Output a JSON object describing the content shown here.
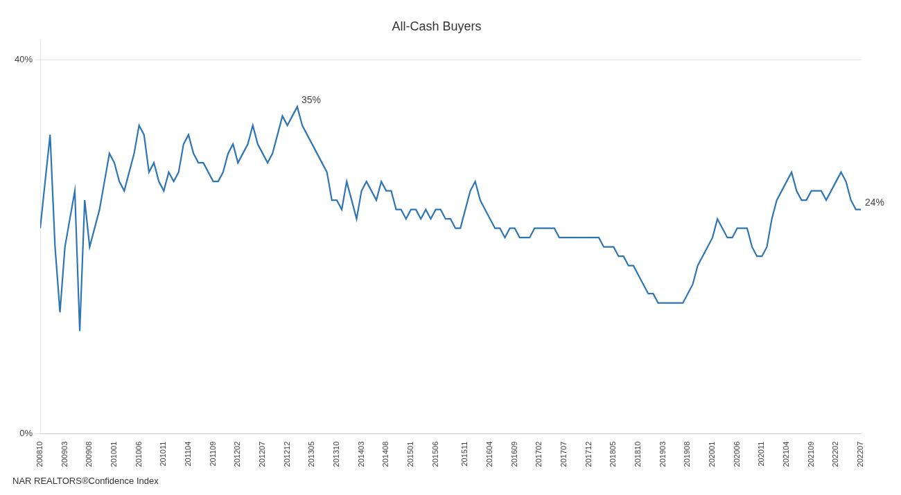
{
  "chart_data": {
    "type": "line",
    "title": "All-Cash Buyers",
    "footer": "NAR REALTORS®Confidence Index",
    "color": "#2e75b6",
    "categories": [
      "200810",
      null,
      null,
      null,
      null,
      "200903",
      null,
      null,
      null,
      null,
      "200908",
      null,
      null,
      null,
      null,
      "201001",
      null,
      null,
      null,
      null,
      "201006",
      null,
      null,
      null,
      null,
      "201011",
      null,
      null,
      null,
      null,
      "201104",
      null,
      null,
      null,
      null,
      "201109",
      null,
      null,
      null,
      null,
      "201202",
      null,
      null,
      null,
      null,
      "201207",
      null,
      null,
      null,
      null,
      "201212",
      null,
      null,
      null,
      null,
      "201305",
      null,
      null,
      null,
      null,
      "201310",
      null,
      null,
      null,
      null,
      "201403",
      null,
      null,
      null,
      null,
      "201408",
      null,
      null,
      null,
      null,
      "201501",
      null,
      null,
      null,
      null,
      "201506",
      null,
      null,
      null,
      null,
      null,
      "201511",
      null,
      null,
      null,
      null,
      "201604",
      null,
      null,
      null,
      null,
      "201609",
      null,
      null,
      null,
      null,
      "201702",
      null,
      null,
      null,
      null,
      "201707",
      null,
      null,
      null,
      null,
      "201712",
      null,
      null,
      null,
      null,
      "201805",
      null,
      null,
      null,
      null,
      "201810",
      null,
      null,
      null,
      null,
      "201903",
      null,
      null,
      null,
      null,
      "201908",
      null,
      null,
      null,
      null,
      "202001",
      null,
      null,
      null,
      null,
      "202006",
      null,
      null,
      null,
      null,
      "202011",
      null,
      null,
      null,
      null,
      "202104",
      null,
      null,
      null,
      null,
      "202109",
      null,
      null,
      null,
      null,
      "202202",
      null,
      null,
      null,
      null,
      "202207"
    ],
    "values": [
      22,
      27,
      32,
      20,
      13,
      20,
      23,
      26,
      11,
      25,
      20,
      22,
      24,
      27,
      30,
      29,
      27,
      26,
      28,
      30,
      33,
      32,
      28,
      29,
      27,
      26,
      28,
      27,
      28,
      31,
      32,
      30,
      29,
      29,
      28,
      27,
      27,
      28,
      30,
      31,
      29,
      30,
      31,
      33,
      31,
      30,
      29,
      30,
      32,
      34,
      33,
      34,
      35,
      33,
      32,
      31,
      30,
      29,
      28,
      25,
      25,
      24,
      27,
      25,
      23,
      26,
      27,
      26,
      25,
      27,
      26,
      26,
      24,
      24,
      23,
      24,
      24,
      23,
      24,
      23,
      24,
      24,
      23,
      23,
      22,
      22,
      24,
      26,
      27,
      25,
      24,
      23,
      22,
      22,
      21,
      22,
      22,
      21,
      21,
      21,
      22,
      22,
      22,
      22,
      22,
      21,
      21,
      21,
      21,
      21,
      21,
      21,
      21,
      21,
      20,
      20,
      20,
      19,
      19,
      18,
      18,
      17,
      16,
      15,
      15,
      14,
      14,
      14,
      14,
      14,
      14,
      15,
      16,
      18,
      19,
      20,
      21,
      23,
      22,
      21,
      21,
      22,
      22,
      22,
      20,
      19,
      19,
      20,
      23,
      25,
      26,
      27,
      28,
      26,
      25,
      25,
      26,
      26,
      26,
      25,
      26,
      27,
      28,
      27,
      25,
      24,
      24
    ],
    "ylim": [
      0,
      42
    ],
    "yticks": [
      {
        "value": 0,
        "label": "0%"
      },
      {
        "value": 40,
        "label": "40%"
      }
    ],
    "grid": "y",
    "annotations": [
      {
        "text": "35%",
        "index": 52,
        "y": 35
      },
      {
        "text": "24%",
        "index": 166,
        "y": 24
      }
    ]
  }
}
